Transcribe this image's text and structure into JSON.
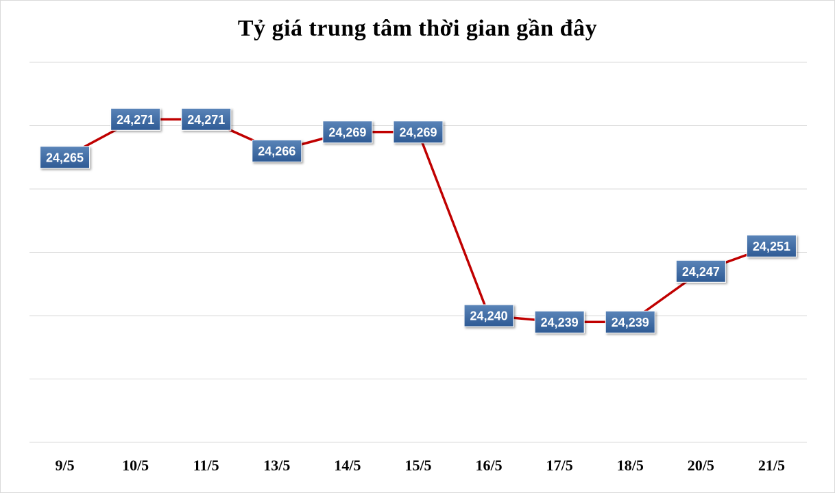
{
  "chart_data": {
    "type": "line",
    "title": "Tỷ giá trung tâm thời gian gần đây",
    "categories": [
      "9/5",
      "10/5",
      "11/5",
      "13/5",
      "14/5",
      "15/5",
      "16/5",
      "17/5",
      "18/5",
      "20/5",
      "21/5"
    ],
    "series": [
      {
        "values": [
          24265,
          24271,
          24271,
          24266,
          24269,
          24269,
          24240,
          24239,
          24239,
          24247,
          24251
        ],
        "labels": [
          "24,265",
          "24,271",
          "24,271",
          "24,266",
          "24,269",
          "24,269",
          "24,240",
          "24,239",
          "24,239",
          "24,247",
          "24,251"
        ]
      }
    ],
    "ylim": [
      24220,
      24280
    ],
    "grid": true,
    "legend": "none",
    "colors": {
      "line": "#c00000",
      "label_box_top": "#5a84b8",
      "label_box_bottom": "#2e5a94",
      "gridline": "#d9d9d9"
    }
  }
}
